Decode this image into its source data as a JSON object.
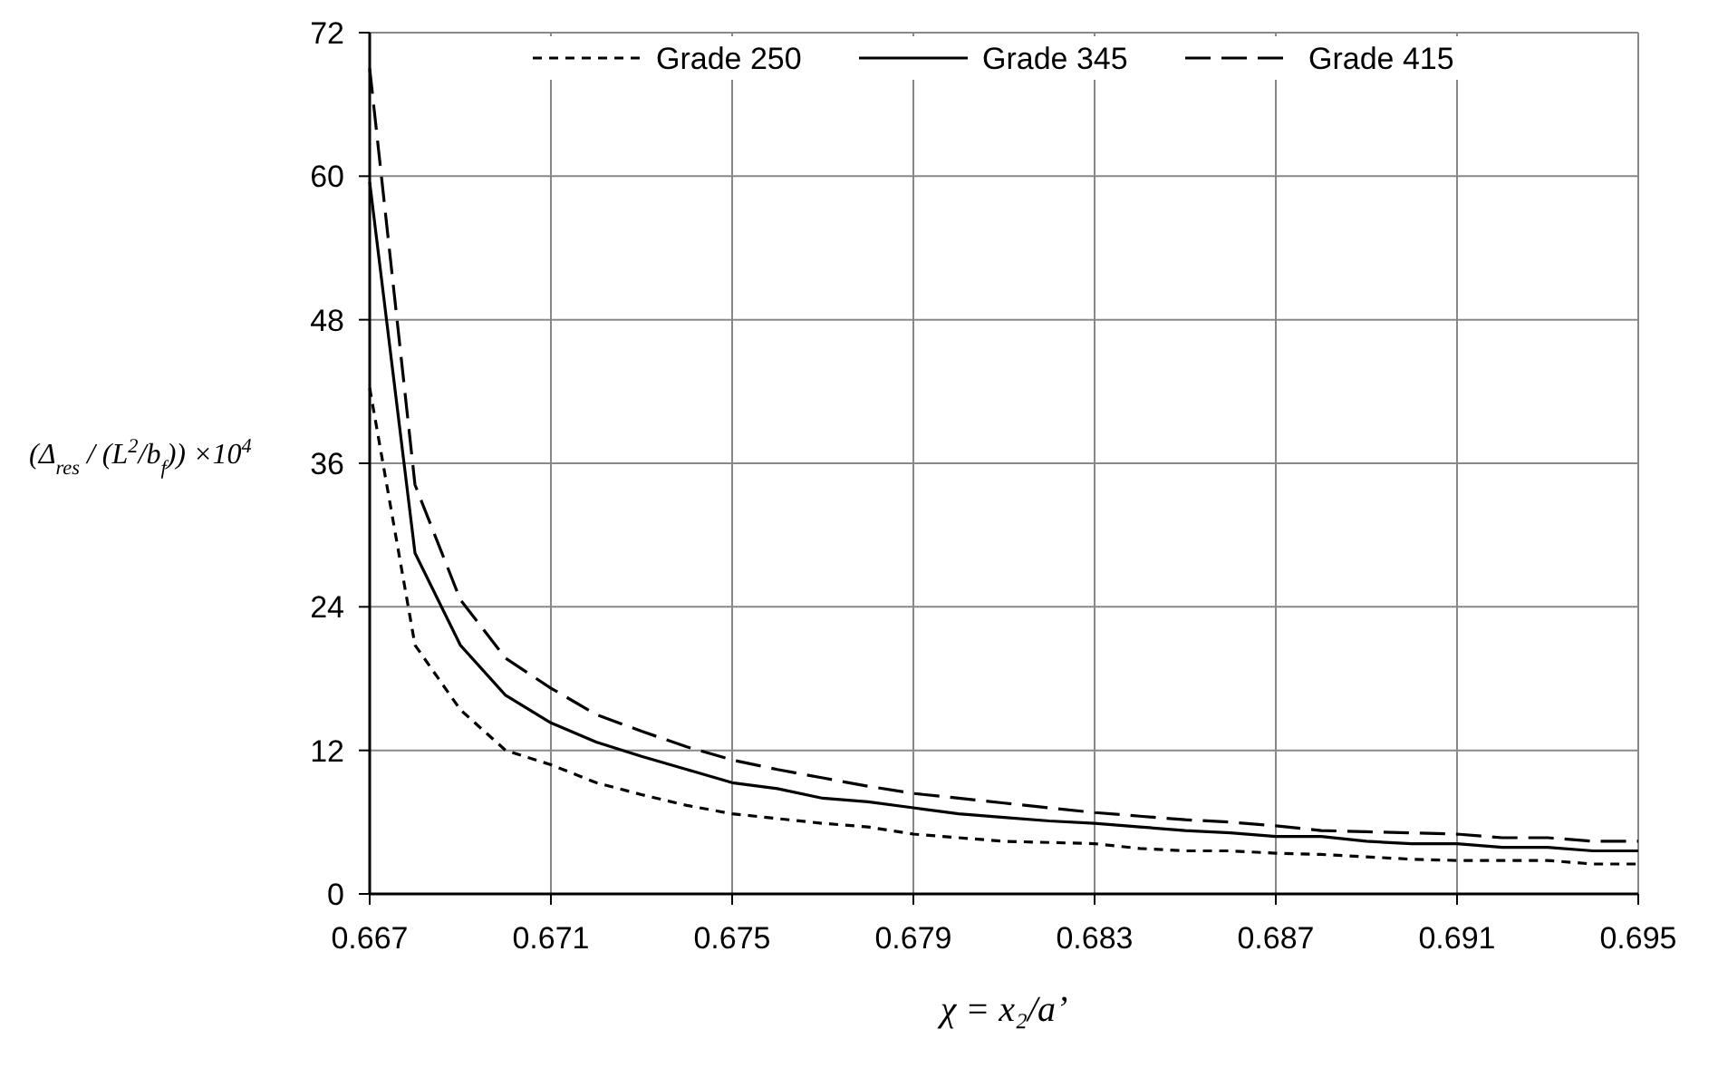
{
  "chart_data": {
    "type": "line",
    "xlabel": "χ = x₂/a’",
    "ylabel": "(Δ$_{res}$ / (L$^{2}$/b$_{f}$)) ×10$^{4}$",
    "x": [
      0.667,
      0.668,
      0.669,
      0.67,
      0.671,
      0.672,
      0.673,
      0.674,
      0.675,
      0.676,
      0.677,
      0.678,
      0.679,
      0.68,
      0.681,
      0.682,
      0.683,
      0.684,
      0.685,
      0.686,
      0.687,
      0.688,
      0.689,
      0.69,
      0.691,
      0.692,
      0.693,
      0.694,
      0.695
    ],
    "series": [
      {
        "name": "Grade 250",
        "color": "#000000",
        "line_style": "dotted",
        "values": [
          42.3,
          20.8,
          15.4,
          12.0,
          10.8,
          9.3,
          8.3,
          7.4,
          6.7,
          6.3,
          5.9,
          5.6,
          5.0,
          4.7,
          4.4,
          4.3,
          4.2,
          3.8,
          3.6,
          3.6,
          3.4,
          3.3,
          3.1,
          2.9,
          2.8,
          2.8,
          2.8,
          2.5,
          2.5
        ]
      },
      {
        "name": "Grade 345",
        "color": "#000000",
        "line_style": "solid",
        "values": [
          59.5,
          28.5,
          20.8,
          16.6,
          14.3,
          12.7,
          11.5,
          10.4,
          9.3,
          8.8,
          8.0,
          7.7,
          7.2,
          6.7,
          6.4,
          6.1,
          5.9,
          5.6,
          5.3,
          5.1,
          4.8,
          4.8,
          4.4,
          4.2,
          4.2,
          3.9,
          3.9,
          3.6,
          3.6
        ]
      },
      {
        "name": "Grade 415",
        "color": "#000000",
        "line_style": "dashed",
        "values": [
          69,
          34.2,
          24.6,
          19.7,
          17.2,
          15.0,
          13.6,
          12.3,
          11.2,
          10.4,
          9.7,
          9.0,
          8.4,
          8.0,
          7.6,
          7.2,
          6.8,
          6.5,
          6.2,
          6.0,
          5.7,
          5.3,
          5.2,
          5.1,
          5.0,
          4.7,
          4.7,
          4.4,
          4.4
        ]
      }
    ],
    "xlim": [
      0.667,
      0.695
    ],
    "xticks": [
      0.667,
      0.671,
      0.675,
      0.679,
      0.683,
      0.687,
      0.691,
      0.695
    ],
    "ylim": [
      0,
      72
    ],
    "yticks": [
      0,
      12,
      24,
      36,
      48,
      60,
      72
    ],
    "grid": true,
    "legend": "top"
  }
}
